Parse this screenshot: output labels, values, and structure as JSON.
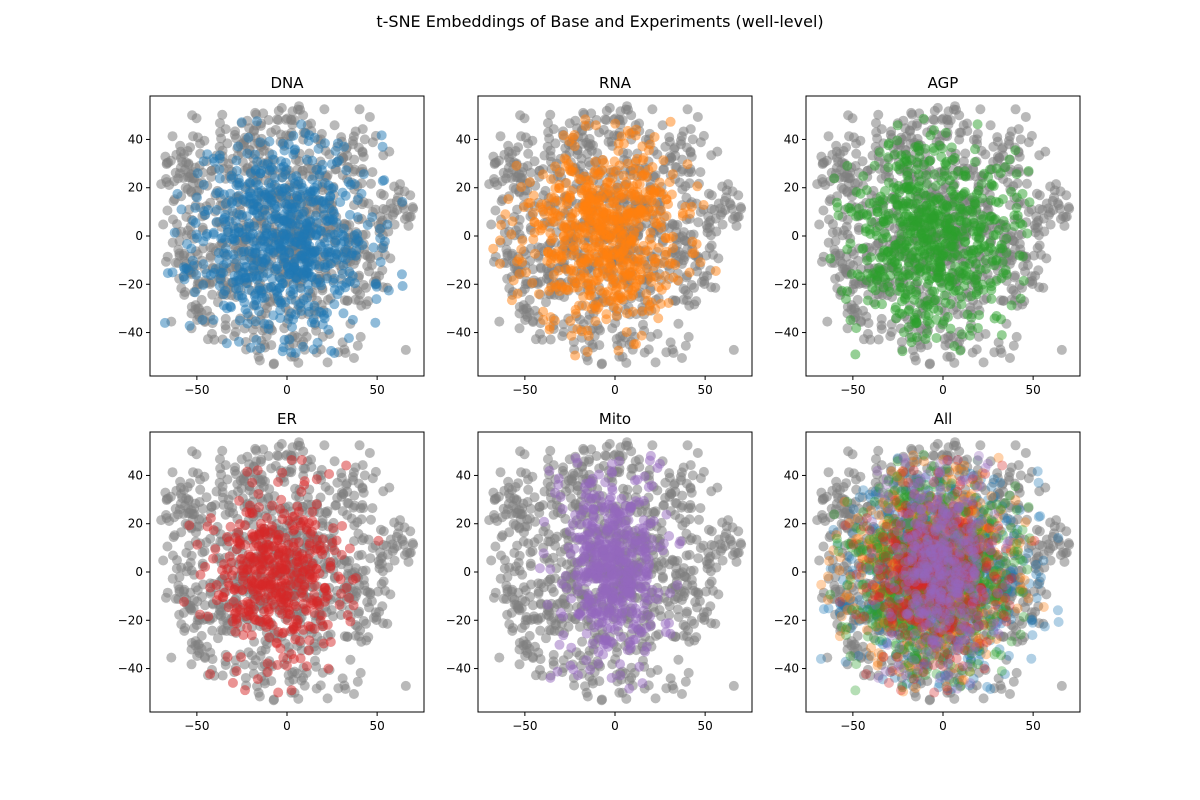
{
  "figure": {
    "title": "t-SNE Embeddings of Base and Experiments (well-level)"
  },
  "colors": {
    "base": "#7f7f7f",
    "DNA": "#1f77b4",
    "RNA": "#ff7f0e",
    "AGP": "#2ca02c",
    "ER": "#d62728",
    "Mito": "#9467bd"
  },
  "chart_data": [
    {
      "type": "scatter",
      "title": "DNA",
      "highlight": [
        "DNA"
      ],
      "xlim": [
        -76,
        76
      ],
      "ylim": [
        -58,
        58
      ],
      "xticks": [
        -50,
        0,
        50
      ],
      "yticks": [
        -40,
        -20,
        0,
        20,
        40
      ]
    },
    {
      "type": "scatter",
      "title": "RNA",
      "highlight": [
        "RNA"
      ],
      "xlim": [
        -76,
        76
      ],
      "ylim": [
        -58,
        58
      ],
      "xticks": [
        -50,
        0,
        50
      ],
      "yticks": [
        -40,
        -20,
        0,
        20,
        40
      ]
    },
    {
      "type": "scatter",
      "title": "AGP",
      "highlight": [
        "AGP"
      ],
      "xlim": [
        -76,
        76
      ],
      "ylim": [
        -58,
        58
      ],
      "xticks": [
        -50,
        0,
        50
      ],
      "yticks": [
        -40,
        -20,
        0,
        20,
        40
      ]
    },
    {
      "type": "scatter",
      "title": "ER",
      "highlight": [
        "ER"
      ],
      "xlim": [
        -76,
        76
      ],
      "ylim": [
        -58,
        58
      ],
      "xticks": [
        -50,
        0,
        50
      ],
      "yticks": [
        -40,
        -20,
        0,
        20,
        40
      ]
    },
    {
      "type": "scatter",
      "title": "Mito",
      "highlight": [
        "Mito"
      ],
      "xlim": [
        -76,
        76
      ],
      "ylim": [
        -58,
        58
      ],
      "xticks": [
        -50,
        0,
        50
      ],
      "yticks": [
        -40,
        -20,
        0,
        20,
        40
      ]
    },
    {
      "type": "scatter",
      "title": "All",
      "highlight": [
        "DNA",
        "RNA",
        "AGP",
        "ER",
        "Mito"
      ],
      "xlim": [
        -76,
        76
      ],
      "ylim": [
        -58,
        58
      ],
      "xticks": [
        -50,
        0,
        50
      ],
      "yticks": [
        -40,
        -20,
        0,
        20,
        40
      ]
    }
  ]
}
